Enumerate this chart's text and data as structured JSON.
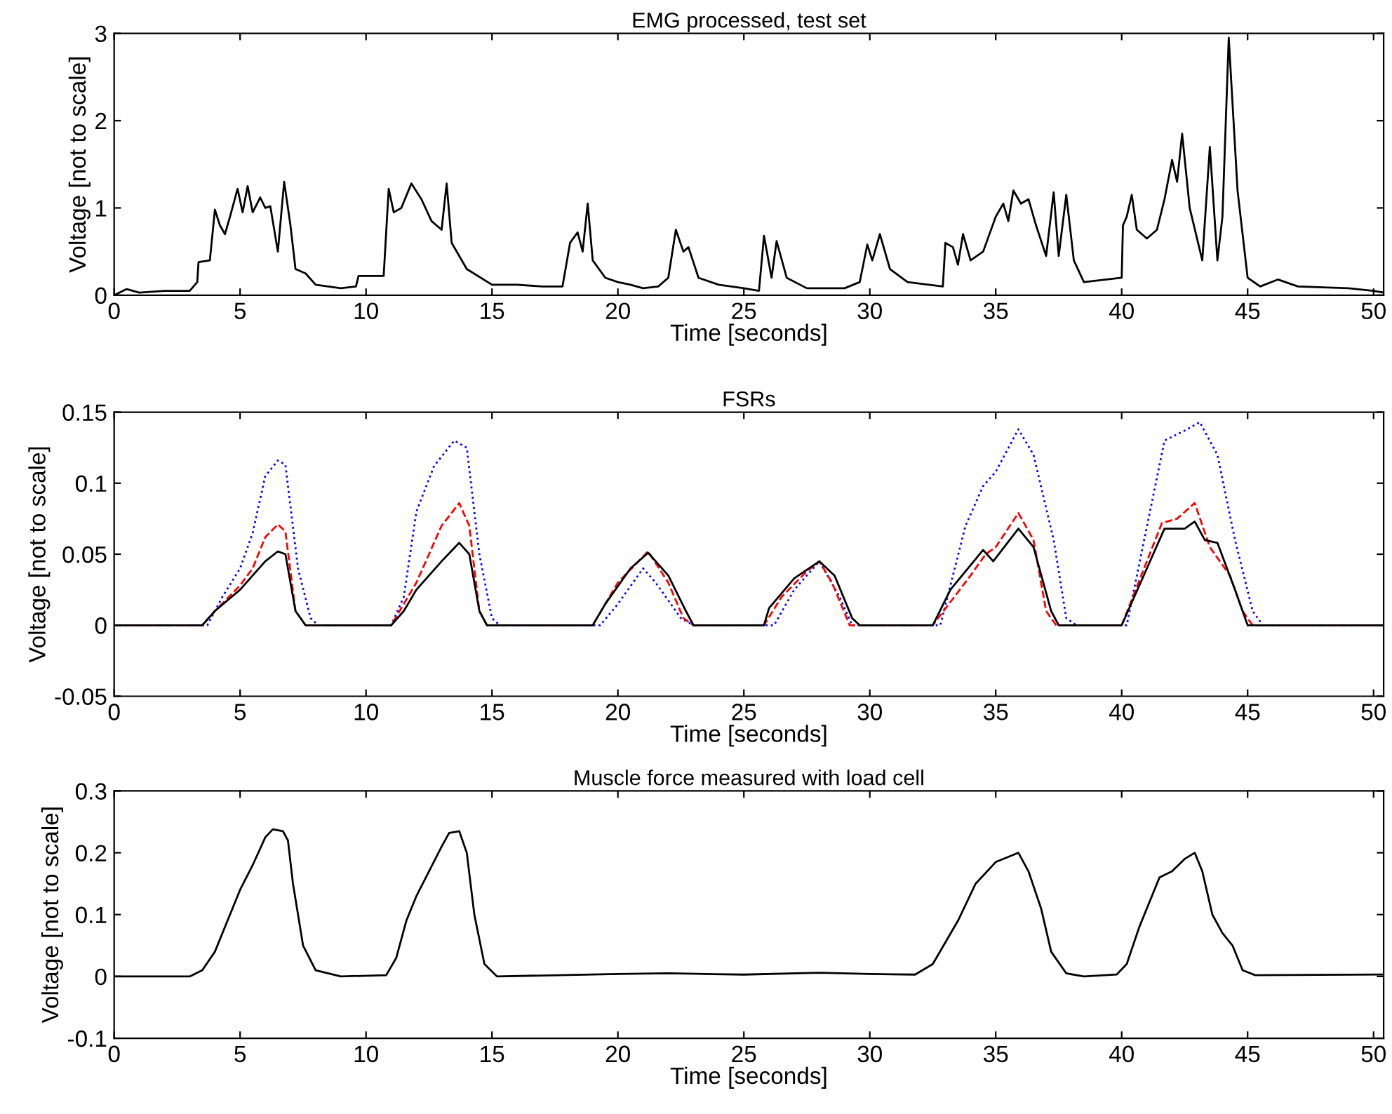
{
  "chart_data": [
    {
      "type": "line",
      "title": "EMG processed, test set",
      "xlabel": "Time [seconds]",
      "ylabel": "Voltage [not to scale]",
      "xlim": [
        0,
        50.4
      ],
      "xticks": [
        0,
        5,
        10,
        15,
        20,
        25,
        30,
        35,
        40,
        45,
        50
      ],
      "ylim": [
        0,
        3
      ],
      "yticks": [
        0,
        1,
        2,
        3
      ],
      "grid": false,
      "legend": false,
      "series": [
        {
          "color": "#000000",
          "line_style": "solid",
          "x": [
            0,
            0.5,
            1,
            2,
            3,
            3.3,
            3.35,
            3.8,
            4.0,
            4.2,
            4.4,
            4.6,
            4.9,
            5.1,
            5.3,
            5.5,
            5.8,
            6.0,
            6.2,
            6.5,
            6.75,
            7.0,
            7.2,
            7.6,
            8.0,
            9.0,
            9.6,
            9.7,
            10.7,
            10.9,
            11.1,
            11.4,
            11.8,
            12.2,
            12.6,
            13.0,
            13.2,
            13.4,
            14.0,
            15,
            16,
            17,
            17.8,
            18.1,
            18.4,
            18.6,
            18.8,
            19.0,
            19.5,
            20,
            20.5,
            21,
            21.6,
            22,
            22.3,
            22.6,
            22.8,
            23.2,
            24,
            25,
            25.6,
            25.8,
            26.1,
            26.3,
            26.7,
            27.5,
            29,
            29.6,
            29.9,
            30.1,
            30.4,
            30.8,
            31.5,
            32.9,
            33.0,
            33.3,
            33.5,
            33.7,
            34.0,
            34.5,
            35.0,
            35.3,
            35.5,
            35.7,
            36.0,
            36.3,
            36.6,
            37.0,
            37.3,
            37.5,
            37.8,
            38.1,
            38.5,
            40.0,
            40.05,
            40.2,
            40.4,
            40.6,
            41.0,
            41.4,
            41.7,
            42.0,
            42.2,
            42.4,
            42.7,
            43.2,
            43.5,
            43.8,
            44.0,
            44.25,
            44.6,
            45.0,
            45.5,
            46.2,
            47,
            49,
            50,
            50.4
          ],
          "values": [
            0.0,
            0.07,
            0.03,
            0.05,
            0.05,
            0.15,
            0.38,
            0.4,
            0.98,
            0.8,
            0.7,
            0.9,
            1.22,
            0.95,
            1.25,
            0.95,
            1.12,
            1.0,
            1.02,
            0.5,
            1.3,
            0.8,
            0.3,
            0.25,
            0.12,
            0.08,
            0.1,
            0.22,
            0.22,
            1.22,
            0.95,
            1.0,
            1.28,
            1.1,
            0.85,
            0.75,
            1.28,
            0.6,
            0.3,
            0.12,
            0.12,
            0.1,
            0.1,
            0.6,
            0.72,
            0.5,
            1.05,
            0.4,
            0.2,
            0.15,
            0.12,
            0.08,
            0.1,
            0.2,
            0.75,
            0.5,
            0.55,
            0.2,
            0.12,
            0.08,
            0.05,
            0.68,
            0.2,
            0.62,
            0.2,
            0.08,
            0.08,
            0.15,
            0.58,
            0.4,
            0.7,
            0.3,
            0.15,
            0.1,
            0.6,
            0.55,
            0.35,
            0.7,
            0.4,
            0.5,
            0.9,
            1.05,
            0.85,
            1.2,
            1.05,
            1.1,
            0.8,
            0.45,
            1.18,
            0.45,
            1.15,
            0.4,
            0.15,
            0.2,
            0.8,
            0.9,
            1.15,
            0.75,
            0.65,
            0.75,
            1.1,
            1.55,
            1.3,
            1.85,
            1.0,
            0.4,
            1.7,
            0.4,
            0.9,
            2.95,
            1.2,
            0.2,
            0.1,
            0.18,
            0.1,
            0.08,
            0.05,
            0.03
          ]
        }
      ]
    },
    {
      "type": "line",
      "title": "FSRs",
      "xlabel": "Time [seconds]",
      "ylabel": "Voltage [not to scale]",
      "xlim": [
        0,
        50.4
      ],
      "xticks": [
        0,
        5,
        10,
        15,
        20,
        25,
        30,
        35,
        40,
        45,
        50
      ],
      "ylim": [
        -0.05,
        0.15
      ],
      "yticks": [
        -0.05,
        0,
        0.05,
        0.1,
        0.15
      ],
      "grid": false,
      "legend": false,
      "series": [
        {
          "color": "#0000ff",
          "line_style": "dotted",
          "x": [
            0,
            3.7,
            4.3,
            5,
            5.5,
            6,
            6.5,
            6.8,
            7.3,
            7.8,
            8.1,
            11,
            11.5,
            12,
            12.7,
            13.5,
            14,
            14.5,
            15,
            15.3,
            19.3,
            20,
            21,
            21.5,
            22.5,
            23,
            26.2,
            27,
            28,
            28.8,
            29.3,
            32.8,
            33.8,
            34.5,
            35,
            35.9,
            36.5,
            37.3,
            37.8,
            38.2,
            40.2,
            41.7,
            42.5,
            43.1,
            43.8,
            44.5,
            45.2,
            45.6,
            50.4
          ],
          "values": [
            0,
            0,
            0.02,
            0.04,
            0.065,
            0.105,
            0.116,
            0.113,
            0.04,
            0.005,
            0,
            0,
            0.02,
            0.08,
            0.112,
            0.13,
            0.125,
            0.05,
            0.005,
            0,
            0,
            0.015,
            0.04,
            0.03,
            0.005,
            0,
            0,
            0.025,
            0.045,
            0.02,
            0,
            0,
            0.07,
            0.098,
            0.108,
            0.138,
            0.12,
            0.06,
            0.005,
            0,
            0,
            0.13,
            0.137,
            0.143,
            0.12,
            0.06,
            0.01,
            0,
            0
          ]
        },
        {
          "color": "#ff0000",
          "line_style": "dashed",
          "x": [
            0,
            3.5,
            4,
            5,
            5.5,
            6,
            6.5,
            6.8,
            7.2,
            7.6,
            11,
            12,
            13,
            13.7,
            14.1,
            14.5,
            14.8,
            19,
            20,
            21.2,
            22,
            22.6,
            23,
            25.8,
            26.5,
            27.5,
            28,
            28.5,
            29.2,
            32.5,
            34,
            34.6,
            35,
            35.9,
            36.5,
            37,
            37.4,
            40,
            41.6,
            42.2,
            42.9,
            43.5,
            44.3,
            44.8,
            45.2,
            50.4
          ],
          "values": [
            0,
            0,
            0.01,
            0.028,
            0.04,
            0.062,
            0.071,
            0.066,
            0.01,
            0,
            0,
            0.03,
            0.07,
            0.086,
            0.07,
            0.01,
            0,
            0,
            0.03,
            0.052,
            0.03,
            0.005,
            0,
            0,
            0.02,
            0.038,
            0.045,
            0.03,
            0,
            0,
            0.035,
            0.05,
            0.055,
            0.079,
            0.06,
            0.01,
            0,
            0,
            0.072,
            0.075,
            0.086,
            0.055,
            0.035,
            0.01,
            0,
            0
          ]
        },
        {
          "color": "#000000",
          "line_style": "solid",
          "x": [
            0,
            3.5,
            4,
            5,
            5.5,
            6,
            6.5,
            6.8,
            7.2,
            7.6,
            11,
            11.5,
            12,
            13,
            13.7,
            14.1,
            14.5,
            14.8,
            19,
            19.5,
            20.5,
            21.2,
            22,
            22.7,
            23,
            25.8,
            26,
            27,
            28,
            28.6,
            29.3,
            29.6,
            32.5,
            33.2,
            34.5,
            34.9,
            35.9,
            36.5,
            37.2,
            37.5,
            40,
            41.7,
            42.5,
            42.9,
            43.3,
            43.8,
            44.5,
            45,
            50.4
          ],
          "values": [
            0,
            0,
            0.01,
            0.025,
            0.035,
            0.045,
            0.052,
            0.05,
            0.01,
            0,
            0,
            0.01,
            0.025,
            0.045,
            0.058,
            0.05,
            0.01,
            0,
            0,
            0.015,
            0.04,
            0.051,
            0.035,
            0.01,
            0,
            0,
            0.012,
            0.033,
            0.045,
            0.035,
            0.005,
            0,
            0,
            0.025,
            0.053,
            0.045,
            0.068,
            0.055,
            0.01,
            0,
            0,
            0.068,
            0.068,
            0.073,
            0.06,
            0.058,
            0.025,
            0,
            0
          ]
        }
      ]
    },
    {
      "type": "line",
      "title": "Muscle force measured with load cell",
      "xlabel": "Time [seconds]",
      "ylabel": "Voltage [not to scale]",
      "xlim": [
        0,
        50.4
      ],
      "xticks": [
        0,
        5,
        10,
        15,
        20,
        25,
        30,
        35,
        40,
        45,
        50
      ],
      "ylim": [
        -0.1,
        0.3
      ],
      "yticks": [
        -0.1,
        0,
        0.1,
        0.2,
        0.3
      ],
      "grid": false,
      "legend": false,
      "series": [
        {
          "color": "#000000",
          "line_style": "solid",
          "x": [
            0,
            3,
            3.5,
            4,
            4.5,
            5,
            5.5,
            6,
            6.3,
            6.7,
            6.9,
            7.1,
            7.5,
            8,
            9,
            10.8,
            11.2,
            11.6,
            12,
            12.5,
            13,
            13.3,
            13.7,
            14,
            14.3,
            14.7,
            15.2,
            20,
            22,
            25,
            28,
            30,
            31.8,
            32.5,
            33.5,
            34.2,
            35,
            35.6,
            35.9,
            36.3,
            36.8,
            37.2,
            37.8,
            38.5,
            39.8,
            40.2,
            40.7,
            41.5,
            42,
            42.5,
            42.9,
            43.2,
            43.6,
            44,
            44.4,
            44.8,
            45.3,
            50.4
          ],
          "values": [
            0,
            0,
            0.01,
            0.04,
            0.09,
            0.14,
            0.18,
            0.225,
            0.238,
            0.235,
            0.22,
            0.15,
            0.05,
            0.01,
            0,
            0.002,
            0.03,
            0.09,
            0.13,
            0.17,
            0.21,
            0.232,
            0.235,
            0.2,
            0.1,
            0.02,
            0,
            0.004,
            0.005,
            0.003,
            0.006,
            0.004,
            0.003,
            0.02,
            0.09,
            0.15,
            0.185,
            0.195,
            0.2,
            0.17,
            0.11,
            0.04,
            0.005,
            0,
            0.003,
            0.02,
            0.08,
            0.16,
            0.17,
            0.19,
            0.2,
            0.17,
            0.1,
            0.07,
            0.05,
            0.01,
            0.002,
            0.003
          ]
        }
      ]
    }
  ]
}
